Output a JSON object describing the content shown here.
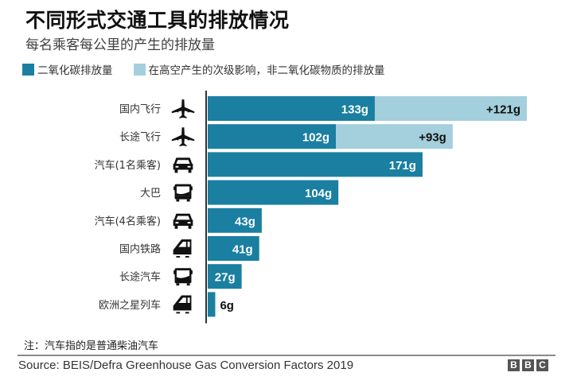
{
  "chart_data": {
    "type": "bar",
    "orientation": "horizontal",
    "stacked": true,
    "title": "不同形式交通工具的排放情况",
    "subtitle": "每名乘客每公里的产生的排放量",
    "unit": "g",
    "categories": [
      "国内飞行",
      "长途飞行",
      "汽车(1名乘客)",
      "大巴",
      "汽车(4名乘客)",
      "国内铁路",
      "长途汽车",
      "欧洲之星列车"
    ],
    "icons": [
      "airplane-icon",
      "airplane-icon",
      "car-icon",
      "bus-icon",
      "car-icon",
      "train-icon",
      "coach-icon",
      "train-icon"
    ],
    "series": [
      {
        "name": "二氧化碳排放量",
        "color": "#1a7fa1",
        "values": [
          133,
          102,
          171,
          104,
          43,
          41,
          27,
          6
        ],
        "labels": [
          "133g",
          "102g",
          "171g",
          "104g",
          "43g",
          "41g",
          "27g",
          "6g"
        ]
      },
      {
        "name": "在高空产生的次级影响，非二氧化碳物质的排放量",
        "color": "#a4cfdc",
        "values": [
          121,
          93,
          0,
          0,
          0,
          0,
          0,
          0
        ],
        "labels": [
          "+121g",
          "+93g",
          "",
          "",
          "",
          "",
          "",
          ""
        ]
      }
    ],
    "xlim": [
      0,
      260
    ],
    "grid": false,
    "legend": "top-left"
  },
  "note": "注：汽车指的是普通柴油汽车",
  "source": "Source: BEIS/Defra Greenhouse Gas Conversion Factors 2019",
  "logo": [
    "B",
    "B",
    "C"
  ]
}
